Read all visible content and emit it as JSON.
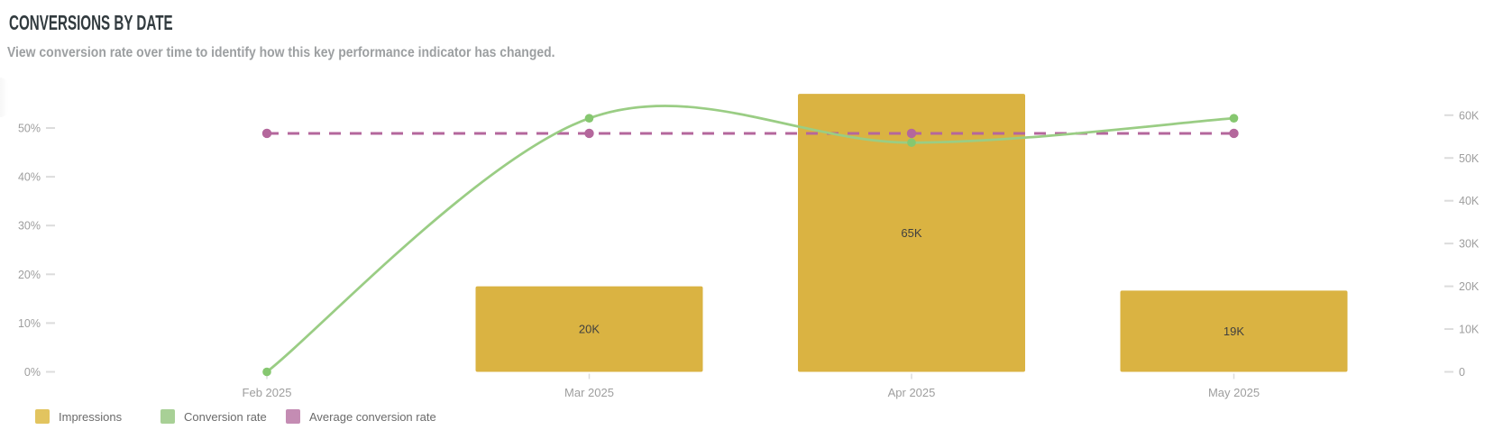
{
  "header": {
    "title": "CONVERSIONS BY DATE",
    "subtitle": "View conversion rate over time to identify how this key performance indicator has changed."
  },
  "colors": {
    "title_text": "#323B3F",
    "subtitle_text": "#9C9FA1",
    "bar": "#DAB342",
    "bar_label_text": "#3F3F3F",
    "conversion_line": "#9ACD84",
    "conversion_dot": "#86C770",
    "average_line": "#B4679C",
    "axis_text": "#9E9E9E",
    "tick_mark": "#DCDCDC",
    "legend_text": "#6B6B6B",
    "legend_swatches": [
      "#E2C45F",
      "#A8D096",
      "#C48CB3"
    ]
  },
  "legend": {
    "items": [
      {
        "label": "Impressions"
      },
      {
        "label": "Conversion rate"
      },
      {
        "label": "Average conversion rate"
      }
    ]
  },
  "chart_data": {
    "type": "combo-bar-line",
    "title": "Conversions by date",
    "categories": [
      "Feb 2025",
      "Mar 2025",
      "Apr 2025",
      "May 2025"
    ],
    "series": [
      {
        "name": "Impressions",
        "type": "bar",
        "axis": "right",
        "values": [
          null,
          20000,
          65000,
          19000
        ],
        "labels": [
          null,
          "20K",
          "65K",
          "19K"
        ]
      },
      {
        "name": "Conversion rate",
        "type": "line",
        "axis": "left",
        "values_pct": [
          0,
          52,
          47,
          52
        ]
      },
      {
        "name": "Average conversion rate",
        "type": "dashed-horizontal-line",
        "axis": "left",
        "value_pct": 48.9
      }
    ],
    "axis_left": {
      "unit": "percent",
      "tick_labels": [
        "0%",
        "10%",
        "20%",
        "30%",
        "40%",
        "50%"
      ],
      "tick_values": [
        0,
        10,
        20,
        30,
        40,
        50
      ],
      "range": [
        0,
        58
      ]
    },
    "axis_right": {
      "unit": "count",
      "tick_labels": [
        "0",
        "10K",
        "20K",
        "30K",
        "40K",
        "50K",
        "60K"
      ],
      "tick_values": [
        0,
        10000,
        20000,
        30000,
        40000,
        50000,
        60000
      ],
      "range": [
        0,
        65000
      ]
    },
    "grid": false,
    "legend_position": "bottom-left"
  }
}
